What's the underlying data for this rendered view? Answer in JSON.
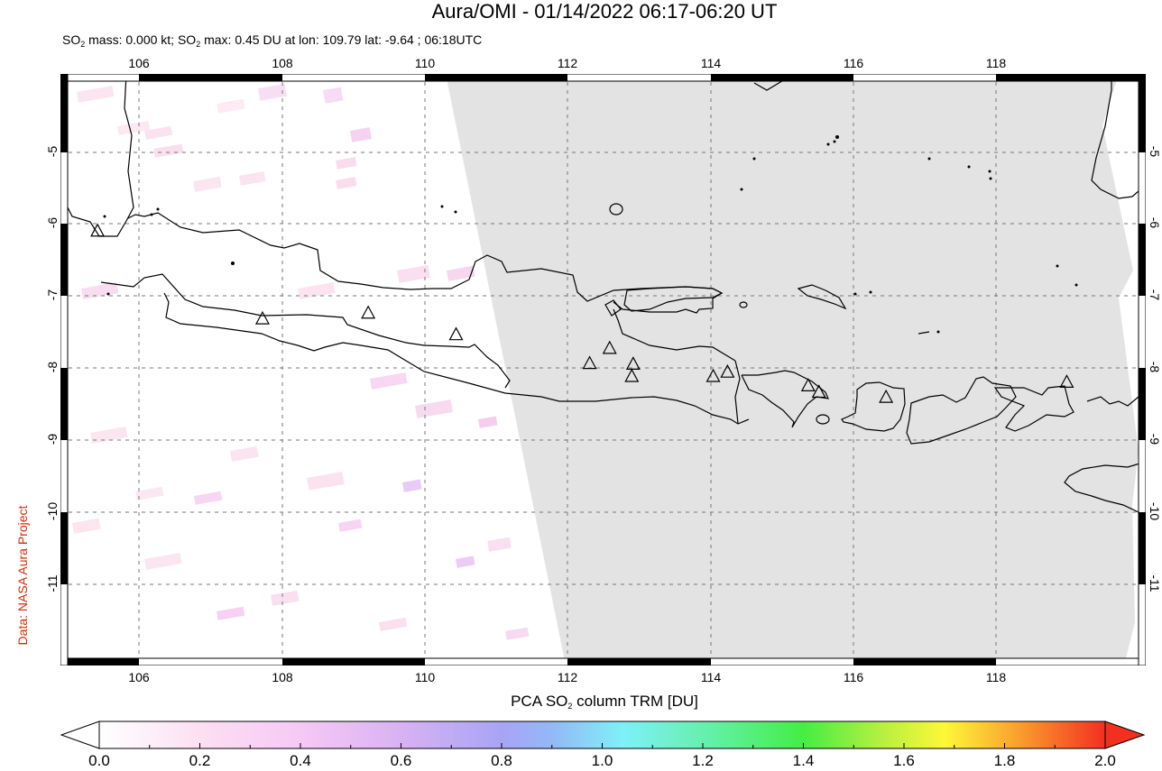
{
  "header": {
    "title": "Aura/OMI - 01/14/2022 06:17-06:20 UT",
    "subtitle_parts": {
      "so2_1": "SO",
      "sub_1": "2",
      "mid": " mass: 0.000 kt; SO",
      "sub_2": "2",
      "rest": " max: 0.45 DU at lon: 109.79 lat: -9.64 ; 06:18UTC"
    }
  },
  "credit": "Data: NASA Aura Project",
  "map": {
    "lon_ticks": [
      "106",
      "108",
      "110",
      "112",
      "114",
      "116",
      "118"
    ],
    "lat_ticks": [
      "-5",
      "-6",
      "-7",
      "-8",
      "-9",
      "-10",
      "-11"
    ],
    "extent": {
      "lon_min": 104.9,
      "lon_max": 120.1,
      "lat_min": -12.1,
      "lat_max": -3.9
    },
    "no_data_color": "#e3e3e3",
    "volcano_marker": "triangle-outline",
    "volcanoes": [
      {
        "lon": 105.42,
        "lat": -6.1
      },
      {
        "lon": 107.73,
        "lat": -7.32
      },
      {
        "lon": 109.21,
        "lat": -7.24
      },
      {
        "lon": 110.44,
        "lat": -7.54
      },
      {
        "lon": 112.31,
        "lat": -7.94
      },
      {
        "lon": 112.59,
        "lat": -7.73
      },
      {
        "lon": 112.92,
        "lat": -7.95
      },
      {
        "lon": 112.9,
        "lat": -8.12
      },
      {
        "lon": 114.04,
        "lat": -8.12
      },
      {
        "lon": 114.24,
        "lat": -8.06
      },
      {
        "lon": 115.37,
        "lat": -8.25
      },
      {
        "lon": 115.52,
        "lat": -8.34
      },
      {
        "lon": 116.46,
        "lat": -8.41
      },
      {
        "lon": 118.99,
        "lat": -8.2
      }
    ]
  },
  "colorbar": {
    "title_pre": "PCA SO",
    "title_sub": "2",
    "title_post": " column TRM [DU]",
    "labels": [
      "0.0",
      "0.2",
      "0.4",
      "0.6",
      "0.8",
      "1.0",
      "1.2",
      "1.4",
      "1.6",
      "1.8",
      "2.0"
    ],
    "min": 0.0,
    "max": 2.0,
    "stops": [
      "#ffffff",
      "#fbd0f0",
      "#f5c2f5",
      "#c8a8f0",
      "#9fa0f5",
      "#8ac0f8",
      "#78f0f8",
      "#60f0a8",
      "#44ee44",
      "#c8f040",
      "#fff838",
      "#fba030",
      "#f64020",
      "#f02818"
    ]
  }
}
